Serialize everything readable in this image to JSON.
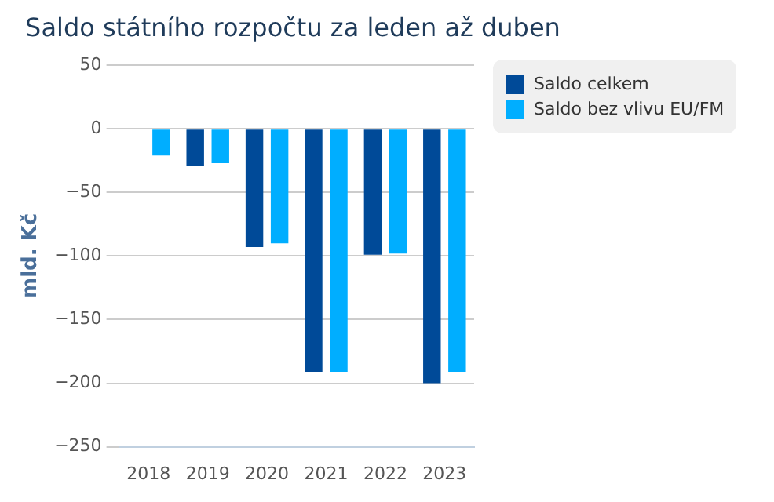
{
  "chart_data": {
    "type": "bar",
    "title": "Saldo státního rozpočtu za leden až duben",
    "ylabel": "mld. Kč",
    "categories": [
      "2018",
      "2019",
      "2020",
      "2021",
      "2022",
      "2023"
    ],
    "series": [
      {
        "name": "Saldo celkem",
        "color": "#004a98",
        "values": [
          null,
          -29,
          -93,
          -191,
          -99,
          -200
        ]
      },
      {
        "name": "Saldo bez vlivu EU/FM",
        "color": "#00aeff",
        "values": [
          -21,
          -27,
          -90,
          -191,
          -98,
          -191
        ]
      }
    ],
    "ylim": [
      -250,
      50
    ],
    "yticks": [
      -250,
      -200,
      -150,
      -100,
      -50,
      0,
      50
    ],
    "grid": "y",
    "legend": "top right"
  }
}
